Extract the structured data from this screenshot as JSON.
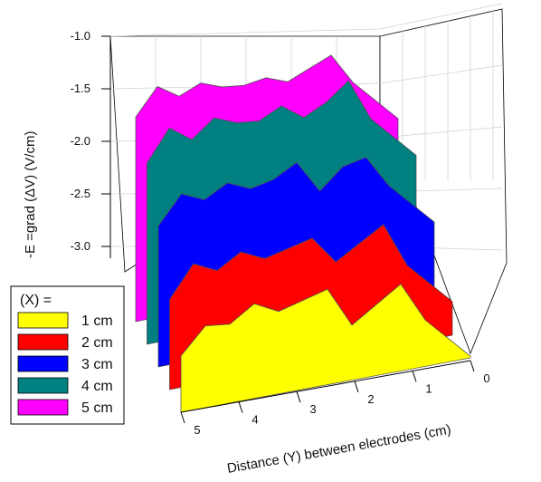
{
  "chart_data": {
    "type": "area",
    "view": "3d-surface",
    "ylabel": "-E =grad (ΔV)   (V/cm)",
    "xlabel": "Distance (Y) between electrodes (cm)",
    "z_ticks": [
      "-1.0",
      "-1.5",
      "-2.0",
      "-2.5",
      "-3.0"
    ],
    "y_ticks": [
      "0",
      "1",
      "2",
      "3",
      "4",
      "5"
    ],
    "zlim": [
      -3.0,
      -1.0
    ],
    "ylim": [
      0,
      5
    ],
    "grid": true,
    "legend": {
      "title": "(X) =",
      "placement": "bottom-left",
      "entries": [
        {
          "label": "1 cm",
          "color": "#ffff00"
        },
        {
          "label": "2 cm",
          "color": "#ff0000"
        },
        {
          "label": "3 cm",
          "color": "#0000ff"
        },
        {
          "label": "4 cm",
          "color": "#008080"
        },
        {
          "label": "5 cm",
          "color": "#ff00ff"
        }
      ]
    },
    "y_positions": [
      0,
      0.5,
      1,
      1.5,
      2,
      2.5,
      3,
      3.5,
      4,
      4.5,
      5
    ],
    "series": [
      {
        "name": "1 cm",
        "color": "#ffff00",
        "values": [
          -2.6,
          -2.4,
          -2.5,
          -2.6,
          -2.4,
          -2.45,
          -2.5,
          -2.45,
          -2.55,
          -2.55,
          -2.7
        ]
      },
      {
        "name": "2 cm",
        "color": "#ff0000",
        "values": [
          -2.45,
          -2.2,
          -2.3,
          -2.4,
          -2.25,
          -2.3,
          -2.35,
          -2.3,
          -2.4,
          -2.35,
          -2.55
        ]
      },
      {
        "name": "3 cm",
        "color": "#0000ff",
        "values": [
          -2.1,
          -1.9,
          -1.95,
          -2.1,
          -1.9,
          -2.0,
          -2.05,
          -2.0,
          -2.1,
          -2.05,
          -2.25
        ]
      },
      {
        "name": "4 cm",
        "color": "#008080",
        "values": [
          -1.75,
          -1.45,
          -1.6,
          -1.7,
          -1.6,
          -1.7,
          -1.7,
          -1.65,
          -1.8,
          -1.7,
          -1.95
        ]
      },
      {
        "name": "5 cm",
        "color": "#ff00ff",
        "values": [
          -1.55,
          -1.3,
          -1.4,
          -1.5,
          -1.45,
          -1.5,
          -1.5,
          -1.45,
          -1.55,
          -1.45,
          -1.7
        ]
      }
    ]
  }
}
